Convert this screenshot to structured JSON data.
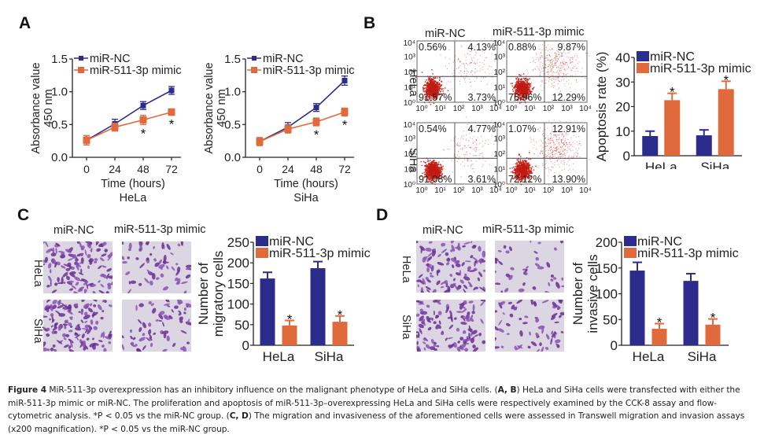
{
  "panels": {
    "A": {
      "letter": "A"
    },
    "B": {
      "letter": "B",
      "col_labels": [
        "miR-NC",
        "miR-511-3p mimic"
      ],
      "row_labels": [
        "HeLa",
        "SiHa"
      ]
    },
    "C": {
      "letter": "C",
      "col_labels": [
        "miR-NC",
        "miR-511-3p mimic"
      ],
      "row_labels": [
        "HeLa",
        "SiHa"
      ]
    },
    "D": {
      "letter": "D",
      "col_labels": [
        "miR-NC",
        "miR-511-3p mimic"
      ],
      "row_labels": [
        "HeLa",
        "SiHa"
      ]
    }
  },
  "colors": {
    "nc": "#2b2c8c",
    "mimic": "#e06a3c",
    "flow_dot": "#c21a12",
    "stain": "#7a3fa0",
    "stain_bg": "#dcd6e2"
  },
  "flow": {
    "axis_ticks": [
      "10⁰",
      "10¹",
      "10²",
      "10³",
      "10⁴"
    ],
    "plots": [
      {
        "name": "hela-nc",
        "q": [
          "0.56%",
          "4.13%",
          "91.57%",
          "3.73%"
        ]
      },
      {
        "name": "hela-mimic",
        "q": [
          "0.88%",
          "9.87%",
          "76.96%",
          "12.29%"
        ]
      },
      {
        "name": "siha-nc",
        "q": [
          "0.54%",
          "4.77%",
          "91.08%",
          "3.61%"
        ]
      },
      {
        "name": "siha-mimic",
        "q": [
          "1.07%",
          "12.91%",
          "72.12%",
          "13.90%"
        ]
      }
    ]
  },
  "chart_data": [
    {
      "id": "A-hela",
      "type": "line",
      "title": "",
      "subtitle": "HeLa",
      "xlabel": "Time (hours)",
      "ylabel": "Absorbance value 450 nm",
      "x": [
        0,
        24,
        48,
        72
      ],
      "xtick_labels": [
        "0",
        "24",
        "48",
        "72"
      ],
      "ylim": [
        0,
        1.5
      ],
      "yticks": [
        "0.0",
        "0.5",
        "1.0",
        "1.5"
      ],
      "series": [
        {
          "name": "miR-NC",
          "values": [
            0.26,
            0.51,
            0.79,
            1.02
          ],
          "errors": [
            0.07,
            0.07,
            0.06,
            0.06
          ]
        },
        {
          "name": "miR-511-3p mimic",
          "values": [
            0.26,
            0.46,
            0.57,
            0.69
          ],
          "errors": [
            0.07,
            0.06,
            0.07,
            0.05
          ]
        }
      ],
      "significance": [
        "",
        "",
        "*",
        "*"
      ],
      "legend": "top-left"
    },
    {
      "id": "A-siha",
      "type": "line",
      "title": "",
      "subtitle": "SiHa",
      "xlabel": "Time (hours)",
      "ylabel": "Absorbance value 450 nm",
      "x": [
        0,
        24,
        48,
        72
      ],
      "xtick_labels": [
        "0",
        "24",
        "48",
        "72"
      ],
      "ylim": [
        0,
        1.5
      ],
      "yticks": [
        "0.0",
        "0.5",
        "1.0",
        "1.5"
      ],
      "series": [
        {
          "name": "miR-NC",
          "values": [
            0.24,
            0.46,
            0.76,
            1.17
          ],
          "errors": [
            0.06,
            0.07,
            0.06,
            0.07
          ]
        },
        {
          "name": "miR-511-3p mimic",
          "values": [
            0.24,
            0.43,
            0.54,
            0.69
          ],
          "errors": [
            0.06,
            0.06,
            0.06,
            0.06
          ]
        }
      ],
      "significance": [
        "",
        "",
        "*",
        "*"
      ],
      "legend": "top-left"
    },
    {
      "id": "B-apoptosis",
      "type": "bar",
      "title": "",
      "xlabel": "",
      "ylabel": "Apoptosis rate (%)",
      "categories": [
        "HeLa",
        "SiHa"
      ],
      "ylim": [
        0,
        40
      ],
      "yticks": [
        "0",
        "10",
        "20",
        "30",
        "40"
      ],
      "series": [
        {
          "name": "miR-NC",
          "values": [
            8,
            8.3
          ],
          "errors": [
            2,
            2.2
          ]
        },
        {
          "name": "miR-511-3p mimic",
          "values": [
            22.6,
            27.1
          ],
          "errors": [
            2.8,
            3.2
          ]
        }
      ],
      "significance": [
        "*",
        "*"
      ],
      "legend": "top-left"
    },
    {
      "id": "C-migration",
      "type": "bar",
      "title": "",
      "xlabel": "",
      "ylabel": "Number of migratory cells",
      "categories": [
        "HeLa",
        "SiHa"
      ],
      "ylim": [
        0,
        250
      ],
      "yticks": [
        "0",
        "50",
        "100",
        "150",
        "200",
        "250"
      ],
      "series": [
        {
          "name": "miR-NC",
          "values": [
            162,
            187
          ],
          "errors": [
            15,
            16
          ]
        },
        {
          "name": "miR-511-3p mimic",
          "values": [
            48,
            57
          ],
          "errors": [
            12,
            14
          ]
        }
      ],
      "significance": [
        "*",
        "*"
      ],
      "legend": "top-left"
    },
    {
      "id": "D-invasion",
      "type": "bar",
      "title": "",
      "xlabel": "",
      "ylabel": "Number of invasive cells",
      "categories": [
        "HeLa",
        "SiHa"
      ],
      "ylim": [
        0,
        200
      ],
      "yticks": [
        "0",
        "50",
        "100",
        "150",
        "200"
      ],
      "series": [
        {
          "name": "miR-NC",
          "values": [
            145,
            125
          ],
          "errors": [
            16,
            14
          ]
        },
        {
          "name": "miR-511-3p mimic",
          "values": [
            32,
            40
          ],
          "errors": [
            10,
            11
          ]
        }
      ],
      "significance": [
        "*",
        "*"
      ],
      "legend": "top-left"
    }
  ],
  "caption": {
    "label": "Figure 4",
    "t1": " MiR-511-3p overexpression has an inhibitory influence on the malignant phenotype of HeLa and SiHa cells. (",
    "ab": "A, B",
    "t2": ") HeLa and SiHa cells were transfected with either the miR-511-3p mimic or miR-NC. The proliferation and apoptosis of miR-511-3p–overexpressing HeLa and SiHa cells were respectively examined by the CCK-8 assay and flow-cytometric analysis. *P < 0.05 vs the miR-NC group. (",
    "cd": "C, D",
    "t3": ") The migration and invasiveness of the aforementioned cells were assessed in Transwell migration and invasion assays (x200 magnification). *P < 0.05 vs the miR-NC group."
  }
}
